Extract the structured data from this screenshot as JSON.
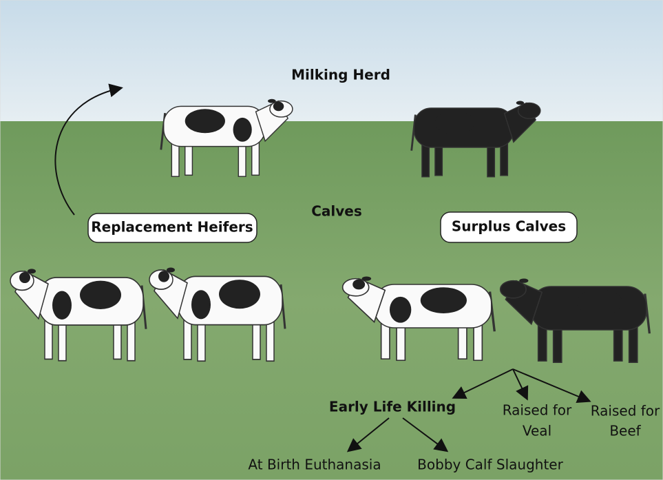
{
  "headings": {
    "milking_herd": "Milking Herd",
    "calves": "Calves"
  },
  "groups": {
    "replacement_heifers": "Replacement Heifers",
    "surplus_calves": "Surplus Calves"
  },
  "outcomes": {
    "early_life_killing": "Early Life Killing",
    "raised_for_veal": [
      "Raised for",
      "Veal"
    ],
    "raised_for_beef": [
      "Raised for",
      "Beef"
    ],
    "at_birth_euthanasia": "At Birth Euthanasia",
    "bobby_calf_slaughter": "Bobby Calf Slaughter"
  }
}
